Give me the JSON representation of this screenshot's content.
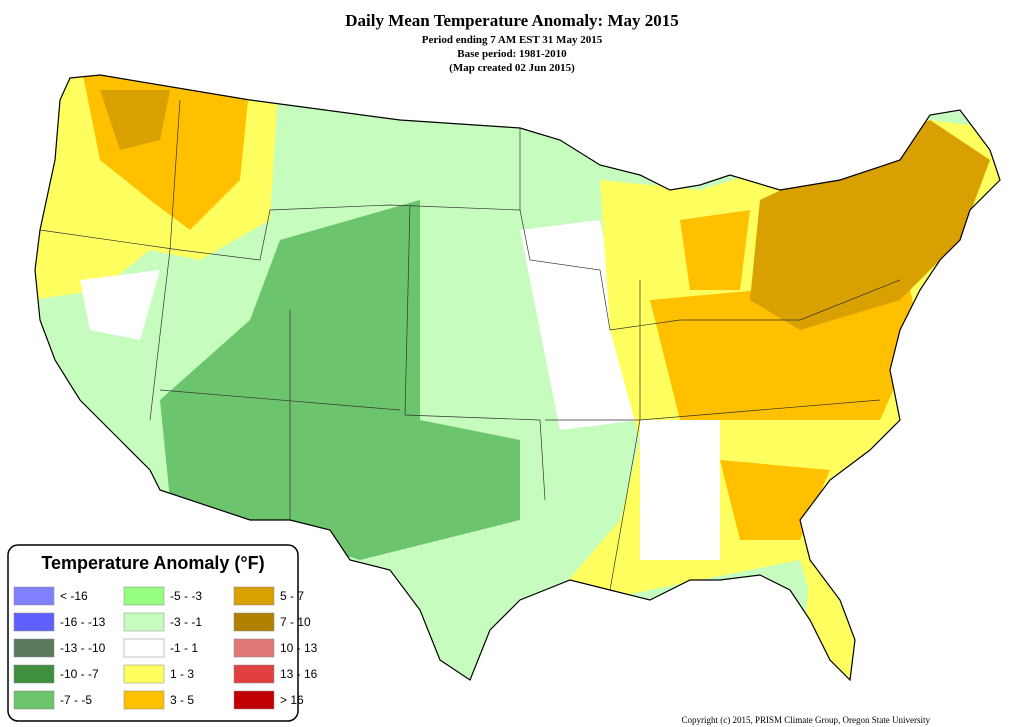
{
  "title": "Daily Mean Temperature Anomaly: May 2015",
  "subtitle_lines": [
    "Period ending 7 AM EST 31 May 2015",
    "Base period: 1981-2010",
    "(Map created 02 Jun 2015)"
  ],
  "legend": {
    "title": "Temperature Anomaly (°F)",
    "items": [
      {
        "label": "< -16",
        "color": "#8080ff"
      },
      {
        "label": "-16 - -13",
        "color": "#6060ff"
      },
      {
        "label": "-13 - -10",
        "color": "#5a785a"
      },
      {
        "label": "-10 - -7",
        "color": "#3f8f3f"
      },
      {
        "label": "-7 - -5",
        "color": "#6cc46c"
      },
      {
        "label": "-5 - -3",
        "color": "#96ff80"
      },
      {
        "label": "-3 - -1",
        "color": "#c6fdbe"
      },
      {
        "label": "-1 - 1",
        "color": "#ffffff"
      },
      {
        "label": "1 - 3",
        "color": "#ffff60"
      },
      {
        "label": "3 - 5",
        "color": "#ffc000"
      },
      {
        "label": "5 - 7",
        "color": "#d8a000"
      },
      {
        "label": "7 - 10",
        "color": "#b08000"
      },
      {
        "label": "10 - 13",
        "color": "#e07878"
      },
      {
        "label": "13 - 16",
        "color": "#e04040"
      },
      {
        "label": "> 16",
        "color": "#c00000"
      }
    ]
  },
  "copyright": "Copyright (c) 2015, PRISM Climate Group, Oregon State University"
}
